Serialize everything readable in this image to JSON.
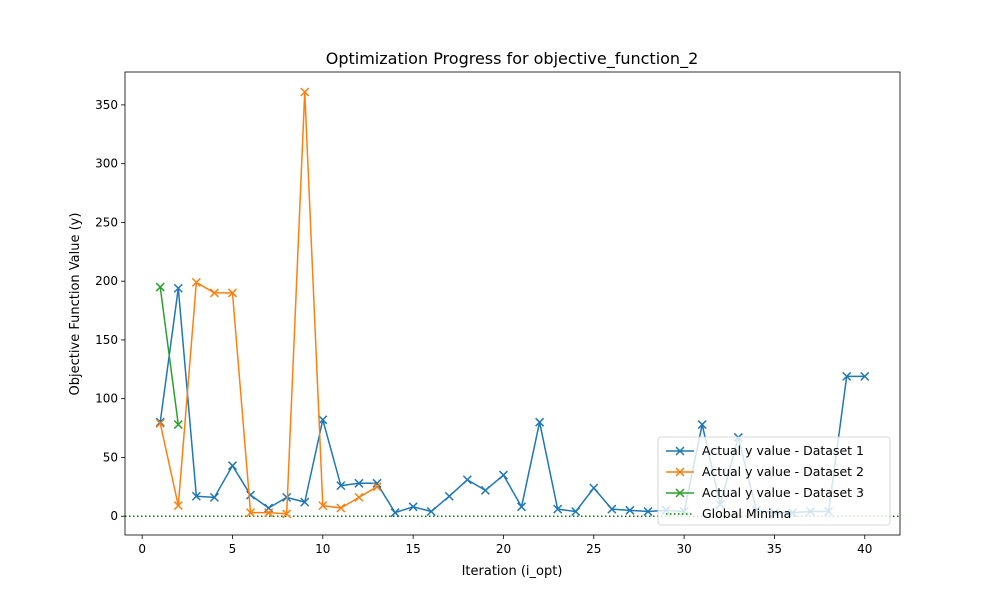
{
  "chart_data": {
    "type": "line",
    "title": "Optimization Progress for objective_function_2",
    "xlabel": "Iteration (i_opt)",
    "ylabel": "Objective Function Value (y)",
    "xlim": [
      -0.95,
      41.95
    ],
    "ylim": [
      -16,
      378
    ],
    "x_ticks": [
      0,
      5,
      10,
      15,
      20,
      25,
      30,
      35,
      40
    ],
    "y_ticks": [
      0,
      50,
      100,
      150,
      200,
      250,
      300,
      350
    ],
    "grid": false,
    "legend_position": "lower right",
    "series": [
      {
        "name": "Actual y value - Dataset 1",
        "color": "#1f77b4",
        "marker": "x",
        "x": [
          1,
          2,
          3,
          4,
          5,
          6,
          7,
          8,
          9,
          10,
          11,
          12,
          13,
          14,
          15,
          16,
          17,
          18,
          19,
          20,
          21,
          22,
          23,
          24,
          25,
          26,
          27,
          28,
          29,
          30,
          31,
          32,
          33,
          34,
          35,
          36,
          37,
          38,
          39,
          40
        ],
        "y": [
          80,
          194,
          17,
          16,
          43,
          18,
          7,
          16,
          12,
          82,
          26,
          28,
          28,
          3,
          8,
          4,
          17,
          31,
          22,
          35,
          8,
          80,
          6,
          4,
          24,
          6,
          5,
          4,
          5,
          4,
          78,
          10,
          67,
          5,
          3,
          3,
          4,
          4,
          119,
          119
        ]
      },
      {
        "name": "Actual y value - Dataset 2",
        "color": "#ff7f0e",
        "marker": "x",
        "x": [
          1,
          2,
          3,
          4,
          5,
          6,
          7,
          8,
          9,
          10,
          11,
          12,
          13
        ],
        "y": [
          79,
          9,
          199,
          190,
          190,
          3,
          3,
          2,
          361,
          9,
          7,
          16,
          25
        ]
      },
      {
        "name": "Actual y value - Dataset 3",
        "color": "#2ca02c",
        "marker": "x",
        "x": [
          1,
          2
        ],
        "y": [
          195,
          78
        ]
      }
    ],
    "reference_line": {
      "name": "Global Minima",
      "y": 0,
      "color": "#008000",
      "style": "dotted"
    }
  }
}
